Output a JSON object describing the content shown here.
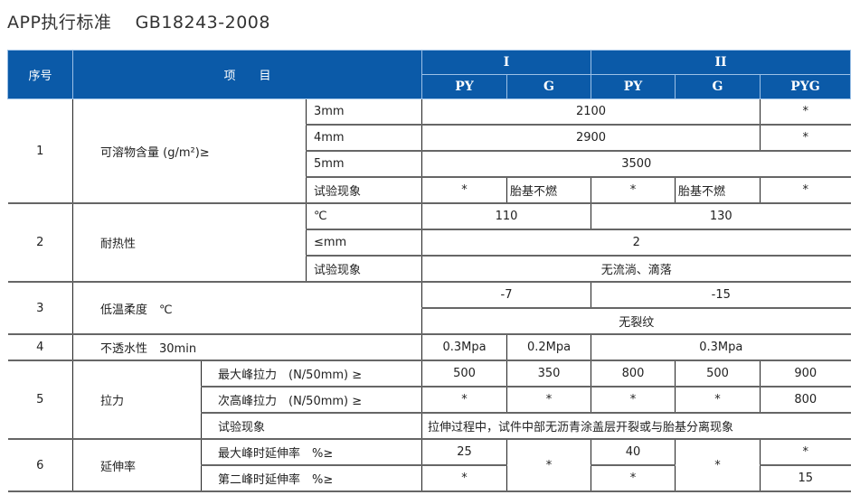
{
  "title": "APP执行标准    GB18243-2008",
  "header": {
    "seq": "序号",
    "item": "项　　目",
    "type1": "I",
    "type2": "II",
    "py1": "PY",
    "g1": "G",
    "py2": "PY",
    "g2": "G",
    "pyg": "PYG",
    "color": "#0b5aa8"
  },
  "rows": {
    "r1": {
      "seq": "1",
      "name": "可溶物含量 (g/m²)≥",
      "sub": [
        "3mm",
        "4mm",
        "5mm",
        "试验现象"
      ],
      "v3mm": "2100",
      "v3mm_pyg": "*",
      "v4mm": "2900",
      "v4mm_pyg": "*",
      "v5mm": "3500",
      "obs": [
        "*",
        "胎基不燃",
        "*",
        "胎基不燃",
        "*"
      ]
    },
    "r2": {
      "seq": "2",
      "name": "耐热性",
      "sub": [
        "℃",
        "≤mm",
        "试验现象"
      ],
      "temp1": "110",
      "temp2": "130",
      "mm": "2",
      "obs": "无流淌、滴落"
    },
    "r3": {
      "seq": "3",
      "name": "低温柔度　℃",
      "v1": "-7",
      "v2": "-15",
      "obs": "无裂纹"
    },
    "r4": {
      "seq": "4",
      "name": "不透水性　30min",
      "v1": "0.3Mpa",
      "v2": "0.2Mpa",
      "v3": "0.3Mpa"
    },
    "r5": {
      "seq": "5",
      "name": "拉力",
      "sub": [
        "最大峰拉力　(N/50mm) ≥",
        "次高峰拉力　(N/50mm) ≥",
        "试验现象"
      ],
      "max": [
        "500",
        "350",
        "800",
        "500",
        "900"
      ],
      "second": [
        "*",
        "*",
        "*",
        "*",
        "800"
      ],
      "obs": "拉伸过程中，试件中部无沥青涂盖层开裂或与胎基分离现象"
    },
    "r6": {
      "seq": "6",
      "name": "延伸率",
      "sub": [
        "最大峰时延伸率　%≥",
        "第二峰时延伸率　%≥"
      ],
      "max_py1": "25",
      "g1": "*",
      "max_py2": "40",
      "g2": "*",
      "max_pyg": "*",
      "second_py1": "*",
      "second_py2": "*",
      "second_pyg": "15"
    }
  }
}
